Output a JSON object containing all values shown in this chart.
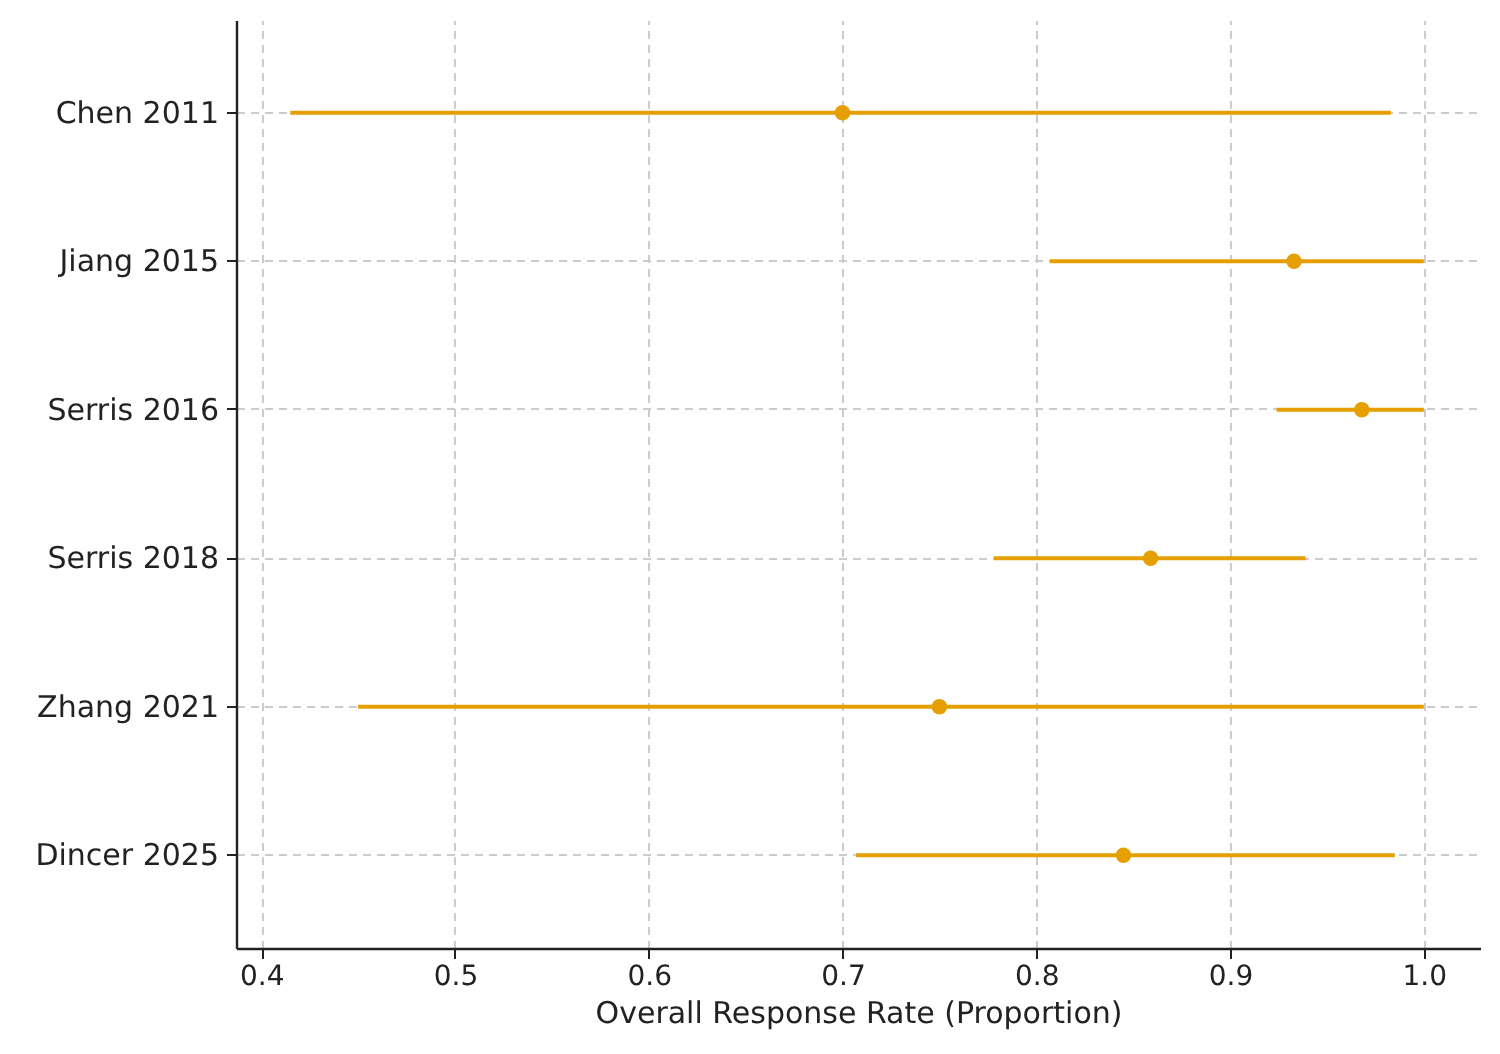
{
  "chart_data": {
    "type": "scatter",
    "orientation": "horizontal",
    "xlabel": "Overall Response Rate (Proportion)",
    "categories": [
      "Chen 2011",
      "Jiang 2015",
      "Serris 2016",
      "Serris 2018",
      "Zhang 2021",
      "Dincer 2025"
    ],
    "values": [
      0.7,
      0.933,
      0.968,
      0.859,
      0.75,
      0.845
    ],
    "errors": [
      [
        0.415,
        0.983
      ],
      [
        0.807,
        1.0
      ],
      [
        0.924,
        1.0
      ],
      [
        0.778,
        0.939
      ],
      [
        0.45,
        1.0
      ],
      [
        0.707,
        0.985
      ]
    ],
    "color": "#e69f00",
    "marker": "circle",
    "xlim": [
      0.387,
      1.029
    ],
    "xticks": [
      0.4,
      0.5,
      0.6,
      0.7,
      0.8,
      0.9,
      {
        "value": 1,
        "label": "1.0"
      }
    ],
    "grid": true
  }
}
